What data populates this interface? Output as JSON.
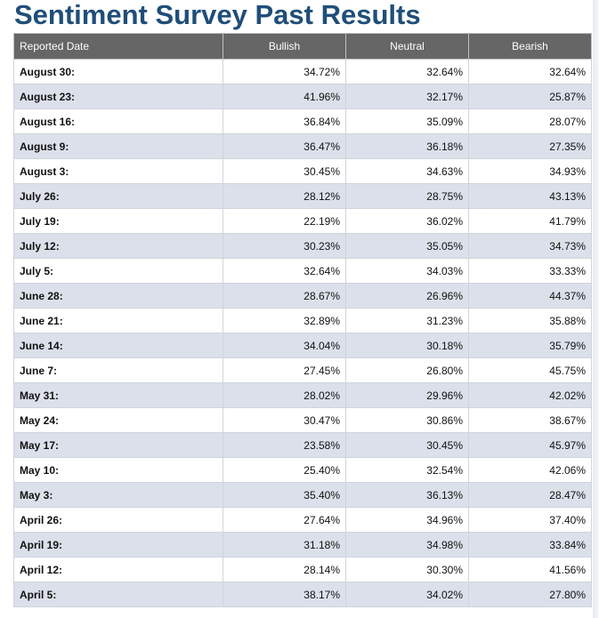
{
  "page": {
    "title": "Sentiment Survey Past Results"
  },
  "table": {
    "headers": [
      "Reported Date",
      "Bullish",
      "Neutral",
      "Bearish"
    ],
    "rows": [
      [
        "August 30:",
        "34.72%",
        "32.64%",
        "32.64%"
      ],
      [
        "August 23:",
        "41.96%",
        "32.17%",
        "25.87%"
      ],
      [
        "August 16:",
        "36.84%",
        "35.09%",
        "28.07%"
      ],
      [
        "August 9:",
        "36.47%",
        "36.18%",
        "27.35%"
      ],
      [
        "August 3:",
        "30.45%",
        "34.63%",
        "34.93%"
      ],
      [
        "July 26:",
        "28.12%",
        "28.75%",
        "43.13%"
      ],
      [
        "July 19:",
        "22.19%",
        "36.02%",
        "41.79%"
      ],
      [
        "July 12:",
        "30.23%",
        "35.05%",
        "34.73%"
      ],
      [
        "July 5:",
        "32.64%",
        "34.03%",
        "33.33%"
      ],
      [
        "June 28:",
        "28.67%",
        "26.96%",
        "44.37%"
      ],
      [
        "June 21:",
        "32.89%",
        "31.23%",
        "35.88%"
      ],
      [
        "June 14:",
        "34.04%",
        "30.18%",
        "35.79%"
      ],
      [
        "June 7:",
        "27.45%",
        "26.80%",
        "45.75%"
      ],
      [
        "May 31:",
        "28.02%",
        "29.96%",
        "42.02%"
      ],
      [
        "May 24:",
        "30.47%",
        "30.86%",
        "38.67%"
      ],
      [
        "May 17:",
        "23.58%",
        "30.45%",
        "45.97%"
      ],
      [
        "May 10:",
        "25.40%",
        "32.54%",
        "42.06%"
      ],
      [
        "May 3:",
        "35.40%",
        "36.13%",
        "28.47%"
      ],
      [
        "April 26:",
        "27.64%",
        "34.96%",
        "37.40%"
      ],
      [
        "April 19:",
        "31.18%",
        "34.98%",
        "33.84%"
      ],
      [
        "April 12:",
        "28.14%",
        "30.30%",
        "41.56%"
      ],
      [
        "April 5:",
        "38.17%",
        "34.02%",
        "27.80%"
      ]
    ]
  },
  "colors": {
    "title": "#1f4e79",
    "header_bg": "#666666",
    "row_alt_bg": "#dbe0ea"
  }
}
